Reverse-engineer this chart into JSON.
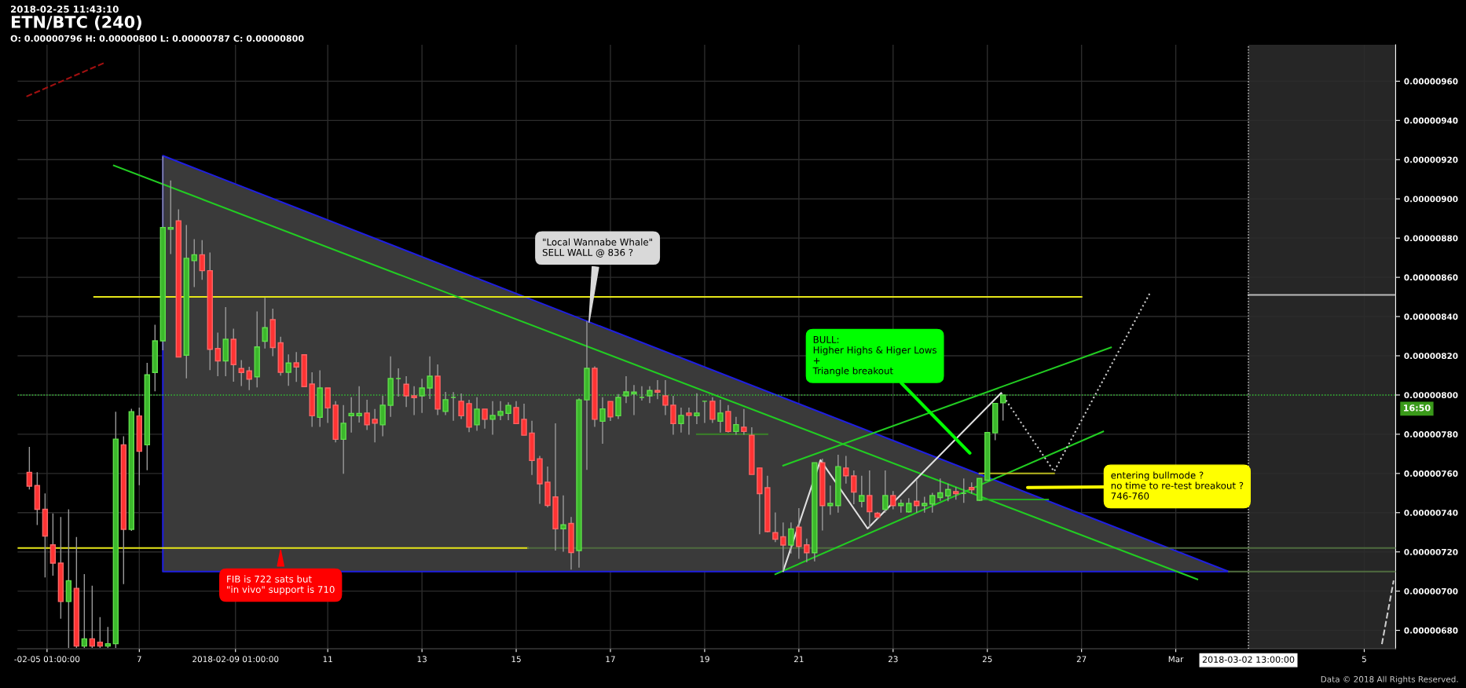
{
  "chart_data": {
    "type": "candlestick",
    "title": "ETN/BTC (240)",
    "subtitle": "O: 0.00000796 H: 0.00000800 L: 0.00000787 C: 0.00000800",
    "x": [
      "2018-02-04T16:00",
      "2018-02-04T20:00",
      "2018-02-05T00:00",
      "2018-02-05T04:00",
      "2018-02-05T08:00",
      "2018-02-05T12:00",
      "2018-02-05T16:00",
      "2018-02-05T20:00",
      "2018-02-06T00:00",
      "2018-02-06T04:00",
      "2018-02-06T08:00",
      "2018-02-06T12:00",
      "2018-02-06T16:00",
      "2018-02-06T20:00",
      "2018-02-07T00:00",
      "2018-02-07T04:00",
      "2018-02-07T08:00",
      "2018-02-07T12:00",
      "2018-02-07T16:00",
      "2018-02-07T20:00",
      "2018-02-08T00:00",
      "2018-02-08T04:00",
      "2018-02-08T08:00",
      "2018-02-08T12:00",
      "2018-02-08T16:00",
      "2018-02-08T20:00",
      "2018-02-09T00:00",
      "2018-02-09T04:00",
      "2018-02-09T08:00",
      "2018-02-09T12:00",
      "2018-02-09T16:00",
      "2018-02-09T20:00",
      "2018-02-10T00:00",
      "2018-02-10T04:00",
      "2018-02-10T08:00",
      "2018-02-10T12:00",
      "2018-02-10T16:00",
      "2018-02-10T20:00",
      "2018-02-11T00:00",
      "2018-02-11T04:00",
      "2018-02-11T08:00",
      "2018-02-11T12:00",
      "2018-02-11T16:00",
      "2018-02-11T20:00",
      "2018-02-12T00:00",
      "2018-02-12T04:00",
      "2018-02-12T08:00",
      "2018-02-12T12:00",
      "2018-02-12T16:00",
      "2018-02-12T20:00",
      "2018-02-13T00:00",
      "2018-02-13T04:00",
      "2018-02-13T08:00",
      "2018-02-13T12:00",
      "2018-02-13T16:00",
      "2018-02-13T20:00",
      "2018-02-14T00:00",
      "2018-02-14T04:00",
      "2018-02-14T08:00",
      "2018-02-14T12:00",
      "2018-02-14T16:00",
      "2018-02-14T20:00",
      "2018-02-15T00:00",
      "2018-02-15T04:00",
      "2018-02-15T08:00",
      "2018-02-15T12:00",
      "2018-02-15T16:00",
      "2018-02-15T20:00",
      "2018-02-16T00:00",
      "2018-02-16T04:00",
      "2018-02-16T08:00",
      "2018-02-16T12:00",
      "2018-02-16T16:00",
      "2018-02-16T20:00",
      "2018-02-17T00:00",
      "2018-02-17T04:00",
      "2018-02-17T08:00",
      "2018-02-17T12:00",
      "2018-02-17T16:00",
      "2018-02-17T20:00",
      "2018-02-18T00:00",
      "2018-02-18T04:00",
      "2018-02-18T08:00",
      "2018-02-18T12:00",
      "2018-02-18T16:00",
      "2018-02-18T20:00",
      "2018-02-19T00:00",
      "2018-02-19T04:00",
      "2018-02-19T08:00",
      "2018-02-19T12:00",
      "2018-02-19T16:00",
      "2018-02-19T20:00",
      "2018-02-20T00:00",
      "2018-02-20T04:00",
      "2018-02-20T08:00",
      "2018-02-20T12:00",
      "2018-02-20T16:00",
      "2018-02-20T20:00",
      "2018-02-21T00:00",
      "2018-02-21T04:00",
      "2018-02-21T08:00",
      "2018-02-21T12:00",
      "2018-02-21T16:00",
      "2018-02-21T20:00",
      "2018-02-22T00:00",
      "2018-02-22T04:00",
      "2018-02-22T08:00",
      "2018-02-22T12:00",
      "2018-02-22T16:00",
      "2018-02-22T20:00",
      "2018-02-23T00:00",
      "2018-02-23T04:00",
      "2018-02-23T08:00",
      "2018-02-23T12:00",
      "2018-02-23T16:00",
      "2018-02-23T20:00",
      "2018-02-24T00:00",
      "2018-02-24T04:00",
      "2018-02-24T08:00",
      "2018-02-24T12:00",
      "2018-02-24T16:00",
      "2018-02-24T20:00",
      "2018-02-25T00:00",
      "2018-02-25T04:00",
      "2018-02-25T08:00"
    ],
    "ohlc": [
      [
        7.606e-06,
        7.735e-06,
        7.518e-06,
        7.535e-06
      ],
      [
        7.538e-06,
        7.606e-06,
        7.337e-06,
        7.417e-06
      ],
      [
        7.417e-06,
        7.498e-06,
        7.07e-06,
        7.281e-06
      ],
      [
        7.236e-06,
        7.396e-06,
        7.079e-06,
        7.143e-06
      ],
      [
        7.143e-06,
        7.378e-06,
        6.859e-06,
        6.947e-06
      ],
      [
        6.947e-06,
        7.417e-06,
        6.71e-06,
        7.053e-06
      ],
      [
        7.014e-06,
        7.276e-06,
        6.71e-06,
        6.72e-06
      ],
      [
        6.72e-06,
        7.087e-06,
        6.71e-06,
        6.757e-06
      ],
      [
        6.757e-06,
        7.028e-06,
        6.71e-06,
        6.72e-06
      ],
      [
        6.74e-06,
        6.867e-06,
        6.71e-06,
        6.72e-06
      ],
      [
        6.72e-06,
        6.817e-06,
        6.71e-06,
        6.732e-06
      ],
      [
        6.732e-06,
        7.915e-06,
        6.71e-06,
        7.775e-06
      ],
      [
        7.746e-06,
        7.789e-06,
        7.036e-06,
        7.315e-06
      ],
      [
        7.315e-06,
        7.93e-06,
        7.307e-06,
        7.915e-06
      ],
      [
        7.893e-06,
        7.936e-06,
        7.54e-06,
        7.713e-06
      ],
      [
        7.746e-06,
        8.164e-06,
        7.616e-06,
        8.103e-06
      ],
      [
        8.115e-06,
        8.358e-06,
        8.019e-06,
        8.276e-06
      ],
      [
        8.276e-06,
        9.217e-06,
        8.228e-06,
        8.854e-06
      ],
      [
        8.845e-06,
        9.094e-06,
        8.719e-06,
        8.854e-06
      ],
      [
        8.888e-06,
        8.947e-06,
        8.194e-06,
        8.194e-06
      ],
      [
        8.203e-06,
        8.867e-06,
        8.085e-06,
        8.697e-06
      ],
      [
        8.685e-06,
        8.795e-06,
        8.55e-06,
        8.715e-06
      ],
      [
        8.715e-06,
        8.79e-06,
        8.587e-06,
        8.634e-06
      ],
      [
        8.634e-06,
        8.727e-06,
        8.127e-06,
        8.233e-06
      ],
      [
        8.237e-06,
        8.318e-06,
        8.096e-06,
        8.174e-06
      ],
      [
        8.174e-06,
        8.448e-06,
        8.096e-06,
        8.284e-06
      ],
      [
        8.284e-06,
        8.338e-06,
        8.068e-06,
        8.155e-06
      ],
      [
        8.135e-06,
        8.178e-06,
        8.046e-06,
        8.115e-06
      ],
      [
        8.123e-06,
        8.144e-06,
        8.025e-06,
        8.081e-06
      ],
      [
        8.093e-06,
        8.426e-06,
        8.039e-06,
        8.245e-06
      ],
      [
        8.274e-06,
        8.495e-06,
        8.237e-06,
        8.343e-06
      ],
      [
        8.384e-06,
        8.44e-06,
        8.198e-06,
        8.242e-06
      ],
      [
        8.266e-06,
        8.297e-06,
        8.099e-06,
        8.116e-06
      ],
      [
        8.116e-06,
        8.207e-06,
        8.047e-06,
        8.163e-06
      ],
      [
        8.164e-06,
        8.219e-06,
        8.067e-06,
        8.143e-06
      ],
      [
        8.205e-06,
        8.205e-06,
        8.043e-06,
        8.043e-06
      ],
      [
        8.056e-06,
        8.116e-06,
        7.838e-06,
        7.894e-06
      ],
      [
        7.886e-06,
        8.126e-06,
        7.838e-06,
        8.036e-06
      ],
      [
        8.036e-06,
        8.036e-06,
        7.858e-06,
        7.934e-06
      ],
      [
        7.948e-06,
        7.969e-06,
        7.758e-06,
        7.774e-06
      ],
      [
        7.774e-06,
        7.949e-06,
        7.598e-06,
        7.856e-06
      ],
      [
        7.894e-06,
        7.989e-06,
        7.809e-06,
        7.906e-06
      ],
      [
        7.894e-06,
        8.045e-06,
        7.86e-06,
        7.906e-06
      ],
      [
        7.908e-06,
        7.976e-06,
        7.822e-06,
        7.848e-06
      ],
      [
        7.876e-06,
        7.929e-06,
        7.758e-06,
        7.856e-06
      ],
      [
        7.848e-06,
        7.996e-06,
        7.789e-06,
        7.948e-06
      ],
      [
        7.947e-06,
        8.197e-06,
        7.889e-06,
        8.084e-06
      ],
      [
        8.084e-06,
        8.136e-06,
        7.992e-06,
        8.084e-06
      ],
      [
        8.055e-06,
        8.096e-06,
        7.939e-06,
        7.996e-06
      ],
      [
        7.996e-06,
        8.045e-06,
        7.898e-06,
        7.987e-06
      ],
      [
        7.996e-06,
        8.083e-06,
        7.909e-06,
        8.036e-06
      ],
      [
        8.036e-06,
        8.197e-06,
        7.98e-06,
        8.096e-06
      ],
      [
        8.096e-06,
        8.156e-06,
        7.898e-06,
        7.928e-06
      ],
      [
        7.916e-06,
        8.016e-06,
        7.898e-06,
        7.976e-06
      ],
      [
        7.988e-06,
        8.015e-06,
        7.869e-06,
        7.988e-06
      ],
      [
        7.968e-06,
        8.008e-06,
        7.878e-06,
        7.894e-06
      ],
      [
        7.956e-06,
        7.976e-06,
        7.811e-06,
        7.836e-06
      ],
      [
        7.848e-06,
        7.989e-06,
        7.818e-06,
        7.928e-06
      ],
      [
        7.928e-06,
        7.928e-06,
        7.829e-06,
        7.876e-06
      ],
      [
        7.876e-06,
        7.969e-06,
        7.798e-06,
        7.896e-06
      ],
      [
        7.896e-06,
        7.969e-06,
        7.872e-06,
        7.916e-06
      ],
      [
        7.906e-06,
        7.963e-06,
        7.872e-06,
        7.947e-06
      ],
      [
        7.936e-06,
        7.969e-06,
        7.854e-06,
        7.854e-06
      ],
      [
        7.876e-06,
        7.956e-06,
        7.795e-06,
        7.795e-06
      ],
      [
        7.806e-06,
        7.869e-06,
        7.592e-06,
        7.666e-06
      ],
      [
        7.675e-06,
        7.689e-06,
        7.445e-06,
        7.547e-06
      ],
      [
        7.555e-06,
        7.635e-06,
        7.427e-06,
        7.437e-06
      ],
      [
        7.48e-06,
        7.856e-06,
        7.207e-06,
        7.318e-06
      ],
      [
        7.318e-06,
        7.488e-06,
        7.201e-06,
        7.338e-06
      ],
      [
        7.345e-06,
        7.378e-06,
        7.11e-06,
        7.197e-06
      ],
      [
        7.207e-06,
        7.983e-06,
        7.12e-06,
        7.975e-06
      ],
      [
        7.975e-06,
        8.377e-06,
        7.618e-06,
        8.136e-06
      ],
      [
        8.136e-06,
        8.146e-06,
        7.838e-06,
        7.876e-06
      ],
      [
        7.866e-06,
        7.989e-06,
        7.751e-06,
        7.929e-06
      ],
      [
        7.967e-06,
        7.967e-06,
        7.868e-06,
        7.888e-06
      ],
      [
        7.894e-06,
        8.005e-06,
        7.878e-06,
        7.988e-06
      ],
      [
        7.996e-06,
        8.096e-06,
        7.959e-06,
        8.016e-06
      ],
      [
        8.006e-06,
        8.051e-06,
        7.898e-06,
        8.015e-06
      ],
      [
        7.988e-06,
        8.045e-06,
        7.972e-06,
        7.988e-06
      ],
      [
        7.996e-06,
        8.045e-06,
        7.959e-06,
        8.023e-06
      ],
      [
        8.023e-06,
        8.076e-06,
        7.979e-06,
        8.015e-06
      ],
      [
        7.996e-06,
        8.076e-06,
        7.898e-06,
        7.948e-06
      ],
      [
        7.948e-06,
        7.996e-06,
        7.798e-06,
        7.854e-06
      ],
      [
        7.854e-06,
        7.936e-06,
        7.809e-06,
        7.896e-06
      ],
      [
        7.908e-06,
        7.936e-06,
        7.798e-06,
        7.896e-06
      ],
      [
        7.894e-06,
        8.009e-06,
        7.852e-06,
        7.908e-06
      ],
      [
        7.968e-06,
        7.968e-06,
        7.858e-06,
        7.968e-06
      ],
      [
        7.968e-06,
        7.989e-06,
        7.858e-06,
        7.876e-06
      ],
      [
        7.866e-06,
        7.976e-06,
        7.809e-06,
        7.908e-06
      ],
      [
        7.916e-06,
        7.949e-06,
        7.809e-06,
        7.814e-06
      ],
      [
        7.814e-06,
        7.889e-06,
        7.798e-06,
        7.849e-06
      ],
      [
        7.836e-06,
        7.929e-06,
        7.798e-06,
        7.814e-06
      ],
      [
        7.795e-06,
        7.836e-06,
        7.595e-06,
        7.595e-06
      ],
      [
        7.628e-06,
        7.628e-06,
        7.29e-06,
        7.497e-06
      ],
      [
        7.527e-06,
        7.588e-06,
        7.3e-06,
        7.304e-06
      ],
      [
        7.298e-06,
        7.401e-06,
        7.25e-06,
        7.265e-06
      ],
      [
        7.277e-06,
        7.35e-06,
        7.101e-06,
        7.235e-06
      ],
      [
        7.235e-06,
        7.35e-06,
        7.192e-06,
        7.317e-06
      ],
      [
        7.326e-06,
        7.423e-06,
        7.165e-06,
        7.228e-06
      ],
      [
        7.236e-06,
        7.268e-06,
        7.148e-06,
        7.196e-06
      ],
      [
        7.196e-06,
        7.655e-06,
        7.152e-06,
        7.655e-06
      ],
      [
        7.655e-06,
        7.675e-06,
        7.309e-06,
        7.436e-06
      ],
      [
        7.436e-06,
        7.538e-06,
        7.389e-06,
        7.447e-06
      ],
      [
        7.436e-06,
        7.695e-06,
        7.4e-06,
        7.635e-06
      ],
      [
        7.628e-06,
        7.689e-06,
        7.548e-06,
        7.588e-06
      ],
      [
        7.587e-06,
        7.615e-06,
        7.443e-06,
        7.505e-06
      ],
      [
        7.458e-06,
        7.588e-06,
        7.427e-06,
        7.487e-06
      ],
      [
        7.487e-06,
        7.615e-06,
        7.326e-06,
        7.405e-06
      ],
      [
        7.397e-06,
        7.404e-06,
        7.369e-06,
        7.377e-06
      ],
      [
        7.417e-06,
        7.615e-06,
        7.4e-06,
        7.487e-06
      ],
      [
        7.487e-06,
        7.51e-06,
        7.417e-06,
        7.436e-06
      ],
      [
        7.436e-06,
        7.467e-06,
        7.4e-06,
        7.447e-06
      ],
      [
        7.404e-06,
        7.474e-06,
        7.4e-06,
        7.447e-06
      ],
      [
        7.458e-06,
        7.568e-06,
        7.4e-06,
        7.436e-06
      ],
      [
        7.436e-06,
        7.481e-06,
        7.4e-06,
        7.447e-06
      ],
      [
        7.444e-06,
        7.501e-06,
        7.4e-06,
        7.487e-06
      ],
      [
        7.477e-06,
        7.574e-06,
        7.46e-06,
        7.501e-06
      ],
      [
        7.485e-06,
        7.548e-06,
        7.458e-06,
        7.518e-06
      ],
      [
        7.507e-06,
        7.53e-06,
        7.466e-06,
        7.497e-06
      ],
      [
        7.498e-06,
        7.574e-06,
        7.45e-06,
        7.498e-06
      ],
      [
        7.528e-06,
        7.554e-06,
        7.497e-06,
        7.517e-06
      ],
      [
        7.463e-06,
        7.574e-06,
        7.46e-06,
        7.574e-06
      ],
      [
        7.565e-06,
        7.809e-06,
        7.565e-06,
        7.809e-06
      ],
      [
        7.807e-06,
        7.957e-06,
        7.769e-06,
        7.957e-06
      ],
      [
        7.96e-06,
        8e-06,
        7.87e-06,
        8e-06
      ]
    ],
    "series": [
      {
        "type": "area",
        "color": "#1f1fe0",
        "x": [
          "2018-02-07T12:00",
          "2018-02-07T12:00",
          "2018-03-02T03:00",
          "2018-02-07T12:00"
        ],
        "values": [
          7.1e-06,
          9.22e-06,
          7.1e-06,
          7.1e-06
        ]
      },
      {
        "type": "line",
        "color": "#e6e619",
        "x": [
          "2018-02-06T01:00",
          "2018-02-27T00:00"
        ],
        "values": [
          8.5e-06,
          8.5e-06
        ]
      },
      {
        "type": "line",
        "color": "#e6e619",
        "x": [
          "2018-02-04T10:00",
          "2018-02-15T06:00"
        ],
        "values": [
          7.22e-06,
          7.22e-06
        ]
      },
      {
        "type": "line",
        "color": "#4f6b3f",
        "x": [
          "2018-02-15T06:00",
          "2018-03-05T16:00"
        ],
        "values": [
          7.22e-06,
          7.22e-06
        ]
      },
      {
        "type": "line",
        "color": "#4f6b3f",
        "x": [
          "2018-03-02T03:00",
          "2018-03-05T16:00"
        ],
        "values": [
          7.1e-06,
          7.1e-06
        ]
      },
      {
        "type": "line",
        "color": "#22cc22",
        "x": [
          "2018-02-06T11:00",
          "2018-03-01T11:00"
        ],
        "values": [
          9.17e-06,
          7.06e-06
        ]
      },
      {
        "type": "line",
        "color": "#22cc22",
        "x": [
          "2018-02-20T12:00",
          "2018-02-27T11:00"
        ],
        "values": [
          7.086e-06,
          7.814e-06
        ]
      },
      {
        "type": "line",
        "color": "#22cc22",
        "x": [
          "2018-02-20T16:00",
          "2018-02-27T15:00"
        ],
        "values": [
          7.64e-06,
          8.243e-06
        ]
      },
      {
        "type": "line",
        "color": "#22aa22",
        "x": [
          "2018-02-24T20:00",
          "2018-02-26T07:00"
        ],
        "values": [
          7.467e-06,
          7.467e-06
        ]
      },
      {
        "type": "line",
        "color": "#b5b51e",
        "x": [
          "2018-02-24T20:00",
          "2018-02-26T10:00"
        ],
        "values": [
          7.6e-06,
          7.6e-06
        ]
      },
      {
        "type": "line",
        "color": "#3a7a2a",
        "x": [
          "2018-02-18T20:00",
          "2018-02-20T08:00"
        ],
        "values": [
          7.8e-06,
          7.8e-06
        ]
      },
      {
        "type": "line",
        "color": "#e0e0e0",
        "x": [
          "2018-02-20T16:00",
          "2018-02-21T11:00",
          "2018-02-22T11:00",
          "2018-02-25T07:00"
        ],
        "values": [
          7.102e-06,
          7.668e-06,
          7.319e-06,
          8.01e-06
        ]
      },
      {
        "type": "line",
        "color": "#cccccc",
        "line_style": "dotted",
        "x": [
          "2018-02-25T07:00",
          "2018-02-26T10:00",
          "2018-02-28T11:00"
        ],
        "values": [
          8.01e-06,
          7.61e-06,
          8.523e-06
        ]
      },
      {
        "type": "line",
        "color": "#a01010",
        "line_style": "dashed",
        "x": [
          "2018-02-04T14:30",
          "2018-02-06T06:30"
        ],
        "values": [
          9.522e-06,
          9.695e-06
        ]
      },
      {
        "type": "line",
        "color": "#cccccc",
        "line_style": "dashed",
        "x": [
          "2018-03-05T09:00",
          "2018-03-05T15:00"
        ],
        "values": [
          6.73e-06,
          7.054e-06
        ]
      },
      {
        "type": "line",
        "color": "#bbbbbb",
        "x": [
          "2018-03-02T13:00",
          "2018-03-05T16:00"
        ],
        "values": [
          8.51e-06,
          8.51e-06
        ]
      }
    ],
    "ref_lines": [
      {
        "axis": "y",
        "value": 8e-06,
        "color": "#33cc33",
        "line_style": "dotted"
      },
      {
        "axis": "x",
        "value": "2018-03-02T13:00",
        "label": "2018-03-02 13:00:00",
        "color": "#dddddd",
        "line_style": "dotted"
      }
    ],
    "bands": [
      {
        "axis": "x",
        "from": "2018-03-02T13:00",
        "to": "2018-03-05T16:00",
        "color": "#262626"
      }
    ],
    "annotations": [
      "2018-02-25 11:43:10",
      {
        "text": "\"Local Wannabe Whale\"\nSELL WALL @ 836 ?",
        "x": "2018-02-16T13:00",
        "y": 8.36e-06
      },
      {
        "text": "FIB is 722 sats but\n\"in vivo\" support is 710",
        "x": "2018-02-10T00:00",
        "y": 7.22e-06
      },
      "BULL:\nHigher Highs & Higer Lows\n+\nTriangle breakout",
      "entering bullmode ?\nno time to re-test breakout ?\n746-760",
      "16:50",
      "Data © 2018 All Rights Reserved."
    ],
    "xlim": [
      "2018-02-04T10:00",
      "2018-03-05T16:00"
    ],
    "ylim": [
      6.706e-06,
      9.786e-06
    ],
    "xticks": [
      {
        "value": "2018-02-05T01:00",
        "label": "-02-05 01:00:00"
      },
      {
        "value": "2018-02-07T00:00",
        "label": "7"
      },
      {
        "value": "2018-02-09T01:00",
        "label": "2018-02-09 01:00:00"
      },
      {
        "value": "2018-02-11T00:00",
        "label": "11"
      },
      {
        "value": "2018-02-13T00:00",
        "label": "13"
      },
      {
        "value": "2018-02-15T00:00",
        "label": "15"
      },
      {
        "value": "2018-02-17T00:00",
        "label": "17"
      },
      {
        "value": "2018-02-19T00:00",
        "label": "19"
      },
      {
        "value": "2018-02-21T00:00",
        "label": "21"
      },
      {
        "value": "2018-02-23T00:00",
        "label": "23"
      },
      {
        "value": "2018-02-25T00:00",
        "label": "25"
      },
      {
        "value": "2018-02-27T00:00",
        "label": "27"
      },
      {
        "value": "2018-03-01T00:00",
        "label": "Mar"
      },
      {
        "value": "2018-03-05T00:00",
        "label": "5"
      }
    ],
    "yticks": [
      {
        "value": 6.8e-06,
        "label": "0.00000680"
      },
      {
        "value": 7e-06,
        "label": "0.00000700"
      },
      {
        "value": 7.2e-06,
        "label": "0.00000720"
      },
      {
        "value": 7.4e-06,
        "label": "0.00000740"
      },
      {
        "value": 7.6e-06,
        "label": "0.00000760"
      },
      {
        "value": 7.8e-06,
        "label": "0.00000780"
      },
      {
        "value": 8e-06,
        "label": "0.00000800"
      },
      {
        "value": 8.2e-06,
        "label": "0.00000820"
      },
      {
        "value": 8.4e-06,
        "label": "0.00000840"
      },
      {
        "value": 8.6e-06,
        "label": "0.00000860"
      },
      {
        "value": 8.8e-06,
        "label": "0.00000880"
      },
      {
        "value": 9e-06,
        "label": "0.00000900"
      },
      {
        "value": 9.2e-06,
        "label": "0.00000920"
      },
      {
        "value": 9.4e-06,
        "label": "0.00000940"
      },
      {
        "value": 9.6e-06,
        "label": "0.00000960"
      }
    ],
    "grid": true
  }
}
